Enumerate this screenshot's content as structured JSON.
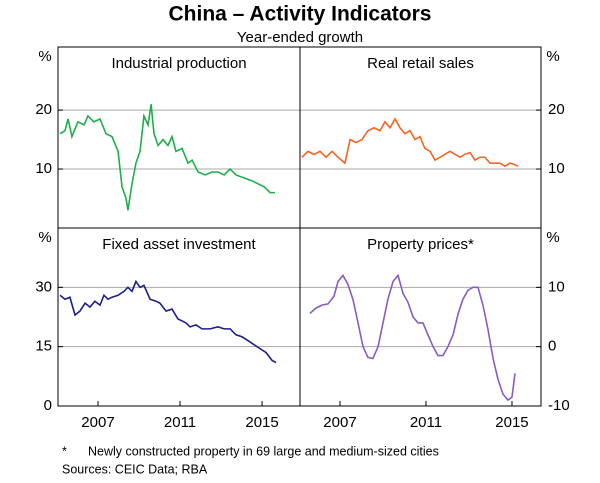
{
  "title": "China – Activity Indicators",
  "subtitle": "Year-ended growth",
  "footnote_marker": "*",
  "footnote": "Newly constructed property in 69 large and medium-sized cities",
  "source": "Sources:  CEIC Data; RBA",
  "chart_data": [
    {
      "type": "line",
      "title": "Industrial production",
      "ylabel": "%",
      "yaxis": "left",
      "color": "#1fae4b",
      "grid": true,
      "xlim": [
        2005.05,
        2016.85
      ],
      "ylim": [
        0,
        30.7
      ],
      "yticks": [
        10,
        20
      ],
      "x": [
        2005.15,
        2005.39,
        2005.54,
        2005.73,
        2006.02,
        2006.32,
        2006.51,
        2006.8,
        2007.1,
        2007.39,
        2007.68,
        2007.98,
        2008.17,
        2008.37,
        2008.46,
        2008.66,
        2008.85,
        2009.05,
        2009.24,
        2009.44,
        2009.59,
        2009.73,
        2009.93,
        2010.17,
        2010.41,
        2010.61,
        2010.8,
        2011.1,
        2011.39,
        2011.59,
        2011.88,
        2012.22,
        2012.56,
        2012.85,
        2013.15,
        2013.44,
        2013.73,
        2014.12,
        2014.51,
        2014.8,
        2015.1,
        2015.39,
        2015.63
      ],
      "values": [
        16,
        16.5,
        18.5,
        15.5,
        18,
        17.5,
        19,
        18,
        18.5,
        16,
        15.5,
        13,
        7,
        5,
        3,
        7.5,
        11,
        13,
        19,
        17.5,
        21,
        16,
        14,
        15,
        14,
        15.5,
        13,
        13.5,
        11,
        11.5,
        9.5,
        9,
        9.5,
        9.5,
        9,
        10,
        9,
        8.5,
        8,
        7.5,
        7,
        6,
        6
      ]
    },
    {
      "type": "line",
      "title": "Real retail sales",
      "ylabel": "%",
      "yaxis": "right",
      "color": "#f26522",
      "grid": true,
      "xlim": [
        2005.14,
        2016.35
      ],
      "ylim": [
        0,
        30.7
      ],
      "yticks": [
        10,
        20
      ],
      "x": [
        2005.23,
        2005.51,
        2005.79,
        2006.07,
        2006.35,
        2006.63,
        2006.91,
        2007.23,
        2007.47,
        2007.74,
        2008.02,
        2008.3,
        2008.58,
        2008.86,
        2009.09,
        2009.33,
        2009.56,
        2009.79,
        2010.02,
        2010.26,
        2010.49,
        2010.72,
        2010.95,
        2011.19,
        2011.42,
        2011.65,
        2011.88,
        2012.12,
        2012.35,
        2012.58,
        2012.81,
        2013.05,
        2013.28,
        2013.51,
        2013.74,
        2013.98,
        2014.21,
        2014.44,
        2014.67,
        2014.91,
        2015.09,
        2015.28
      ],
      "values": [
        12,
        13,
        12.5,
        13,
        12,
        13,
        12,
        11,
        15,
        14.5,
        15,
        16.5,
        17,
        16.5,
        18,
        17,
        18.5,
        17,
        16,
        16.5,
        15,
        15.5,
        13.5,
        13,
        11.5,
        12,
        12.5,
        13,
        12.5,
        12,
        12.5,
        12.8,
        11.5,
        12,
        12,
        11,
        11,
        11,
        10.5,
        11,
        10.8,
        10.5
      ]
    },
    {
      "type": "line",
      "title": "Fixed asset investment",
      "ylabel": "%",
      "yaxis": "left",
      "color": "#1b1f8a",
      "grid": true,
      "xlim": [
        2005.05,
        2016.85
      ],
      "ylim": [
        0,
        45
      ],
      "yticks": [
        0,
        15,
        30
      ],
      "xticks": [
        2007,
        2011,
        2015
      ],
      "x": [
        2005.15,
        2005.39,
        2005.63,
        2005.88,
        2006.12,
        2006.37,
        2006.61,
        2006.85,
        2007.1,
        2007.29,
        2007.49,
        2007.68,
        2007.98,
        2008.27,
        2008.46,
        2008.66,
        2008.85,
        2009.05,
        2009.24,
        2009.54,
        2009.83,
        2010.02,
        2010.32,
        2010.61,
        2010.9,
        2011.1,
        2011.29,
        2011.49,
        2011.78,
        2012.07,
        2012.46,
        2012.85,
        2013.15,
        2013.44,
        2013.73,
        2014.02,
        2014.32,
        2014.61,
        2014.9,
        2015.2,
        2015.49,
        2015.68
      ],
      "values": [
        28,
        27,
        27.5,
        23,
        24,
        26,
        25,
        26.5,
        25.5,
        28,
        27,
        27.5,
        28,
        29,
        30,
        29,
        31.5,
        30,
        30.5,
        27,
        26.5,
        26,
        24,
        24.5,
        22,
        21.5,
        21,
        20,
        20.5,
        19.5,
        19.5,
        20,
        19.5,
        19.5,
        18,
        17.5,
        16.5,
        15.5,
        14.5,
        13.5,
        11.5,
        11
      ]
    },
    {
      "type": "line",
      "title": "Property prices*",
      "ylabel": "%",
      "yaxis": "right",
      "color": "#8a5cc2",
      "grid": true,
      "xlim": [
        2005.14,
        2016.35
      ],
      "ylim": [
        -10,
        20
      ],
      "yticks": [
        -10,
        0,
        10
      ],
      "xticks": [
        2007,
        2011,
        2015
      ],
      "x": [
        2005.6,
        2005.88,
        2006.16,
        2006.44,
        2006.72,
        2006.91,
        2007.14,
        2007.37,
        2007.6,
        2007.84,
        2008.07,
        2008.3,
        2008.53,
        2008.77,
        2009,
        2009.23,
        2009.47,
        2009.7,
        2009.93,
        2010.16,
        2010.4,
        2010.63,
        2010.86,
        2011.09,
        2011.33,
        2011.56,
        2011.79,
        2012.02,
        2012.26,
        2012.49,
        2012.72,
        2012.95,
        2013.19,
        2013.42,
        2013.65,
        2013.88,
        2014.12,
        2014.35,
        2014.58,
        2014.81,
        2015,
        2015.14
      ],
      "values": [
        5.6,
        6.5,
        7,
        7.2,
        8.5,
        11,
        12,
        10.5,
        8,
        4,
        0,
        -1.8,
        -2,
        0,
        4,
        8,
        11,
        12,
        9,
        7.5,
        5,
        4,
        4,
        2,
        0,
        -1.5,
        -1.5,
        0,
        2,
        5.5,
        8,
        9.5,
        10,
        10,
        7,
        3,
        -2,
        -5.5,
        -8,
        -9,
        -8.5,
        -4.5
      ]
    }
  ]
}
